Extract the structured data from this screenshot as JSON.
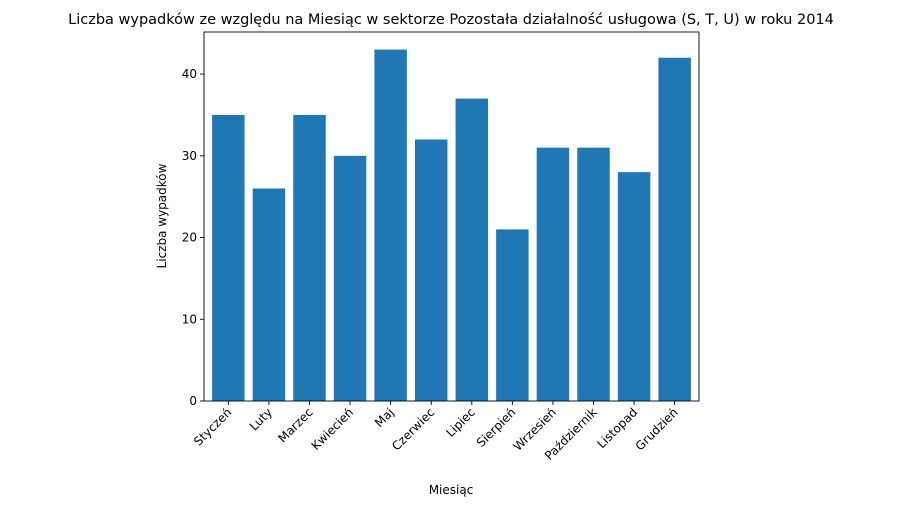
{
  "chart_data": {
    "type": "bar",
    "title": "Liczba wypadków ze względu na Miesiąc w sektorze Pozostała działalność usługowa (S, T, U) w roku 2014",
    "xlabel": "Miesiąc",
    "ylabel": "Liczba wypadków",
    "categories": [
      "Styczeń",
      "Luty",
      "Marzec",
      "Kwiecień",
      "Maj",
      "Czerwiec",
      "Lipiec",
      "Sierpień",
      "Wrzesień",
      "Październik",
      "Listopad",
      "Grudzień"
    ],
    "values": [
      35,
      26,
      35,
      30,
      43,
      32,
      37,
      21,
      31,
      31,
      28,
      42
    ],
    "ylim": [
      0,
      45.15
    ],
    "yticks": [
      0,
      10,
      20,
      30,
      40
    ],
    "grid": false,
    "bar_color": "#1f77b4"
  }
}
